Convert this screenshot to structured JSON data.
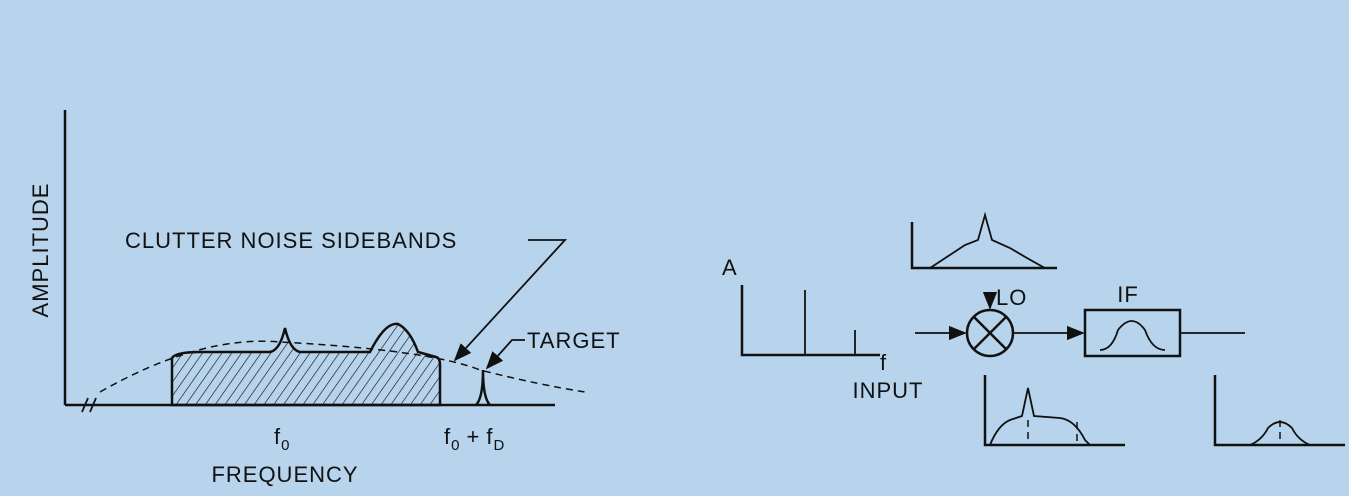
{
  "left_plot": {
    "y_axis_label": "AMPLITUDE",
    "x_axis_label": "FREQUENCY",
    "sidebands_label": "CLUTTER NOISE SIDEBANDS",
    "target_label": "TARGET",
    "f0_label": {
      "main": "f",
      "sub": "0"
    },
    "f0_plus_fd_label": {
      "main1": "f",
      "sub1": "0",
      "op": "+",
      "main2": "f",
      "sub2": "D"
    }
  },
  "right_diagram": {
    "amplitude_label": "A",
    "frequency_label": "f",
    "input_label": "INPUT",
    "lo_label": "LO",
    "if_label": "IF"
  }
}
